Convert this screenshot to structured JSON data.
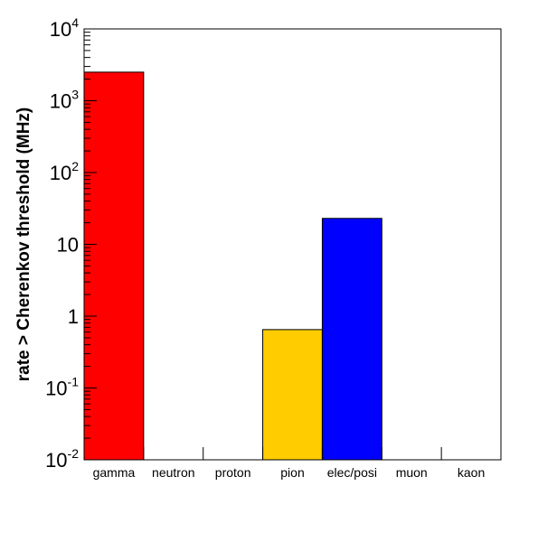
{
  "chart_data": {
    "type": "bar",
    "title": "",
    "xlabel": "",
    "ylabel": "rate > Cherenkov threshold (MHz)",
    "yscale": "log",
    "ylim": [
      0.01,
      10000
    ],
    "grid": false,
    "legend": "none",
    "categories": [
      "gamma",
      "neutron",
      "proton",
      "pion",
      "elec/posi",
      "muon",
      "kaon"
    ],
    "values": [
      2500,
      null,
      null,
      0.65,
      23,
      null,
      null
    ],
    "colors": [
      "#ff0000",
      null,
      null,
      "#ffcc00",
      "#0000ff",
      null,
      null
    ],
    "y_ticks": [
      {
        "base": "10",
        "exp": "-2"
      },
      {
        "base": "10",
        "exp": "-1"
      },
      {
        "base": "1",
        "exp": ""
      },
      {
        "base": "10",
        "exp": ""
      },
      {
        "base": "10",
        "exp": "2"
      },
      {
        "base": "10",
        "exp": "3"
      },
      {
        "base": "10",
        "exp": "4"
      }
    ]
  }
}
